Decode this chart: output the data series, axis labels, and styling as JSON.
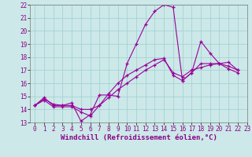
{
  "xlabel": "Windchill (Refroidissement éolien,°C)",
  "ylabel": "",
  "xlim": [
    -0.5,
    23
  ],
  "ylim": [
    13,
    22
  ],
  "xticks": [
    0,
    1,
    2,
    3,
    4,
    5,
    6,
    7,
    8,
    9,
    10,
    11,
    12,
    13,
    14,
    15,
    16,
    17,
    18,
    19,
    20,
    21,
    22,
    23
  ],
  "yticks": [
    13,
    14,
    15,
    16,
    17,
    18,
    19,
    20,
    21,
    22
  ],
  "bg_color": "#cce8e8",
  "line_color": "#990099",
  "lines": [
    [
      0,
      14.3,
      1,
      14.9,
      2,
      14.3,
      3,
      14.3,
      4,
      14.5,
      5,
      13.1,
      6,
      13.6,
      7,
      15.1,
      8,
      15.1,
      9,
      15.0,
      10,
      17.5,
      11,
      19.0,
      12,
      20.5,
      13,
      21.5,
      14,
      22.0,
      15,
      21.8,
      16,
      16.2,
      17,
      16.8,
      18,
      19.2,
      19,
      18.3,
      20,
      17.5,
      21,
      17.3,
      22,
      17.0
    ],
    [
      0,
      14.3,
      1,
      14.8,
      2,
      14.4,
      3,
      14.3,
      4,
      14.3,
      5,
      14.0,
      6,
      14.0,
      7,
      14.3,
      8,
      14.9,
      9,
      15.5,
      10,
      16.0,
      11,
      16.5,
      12,
      17.0,
      13,
      17.4,
      14,
      17.8,
      15,
      16.8,
      16,
      16.5,
      17,
      17.0,
      18,
      17.2,
      19,
      17.4,
      20,
      17.5,
      21,
      17.6,
      22,
      17.0
    ],
    [
      0,
      14.3,
      1,
      14.7,
      2,
      14.2,
      3,
      14.2,
      4,
      14.2,
      5,
      13.8,
      6,
      13.5,
      7,
      14.3,
      8,
      15.2,
      9,
      16.0,
      10,
      16.6,
      11,
      17.0,
      12,
      17.4,
      13,
      17.8,
      14,
      17.9,
      15,
      16.6,
      16,
      16.2,
      17,
      16.8,
      18,
      17.5,
      19,
      17.5,
      20,
      17.5,
      21,
      17.1,
      22,
      16.8
    ]
  ],
  "figsize": [
    3.2,
    2.0
  ],
  "dpi": 100,
  "tick_fontsize": 5.5,
  "label_fontsize": 6.5,
  "grid_color": "#9fcfcf",
  "marker": "+"
}
